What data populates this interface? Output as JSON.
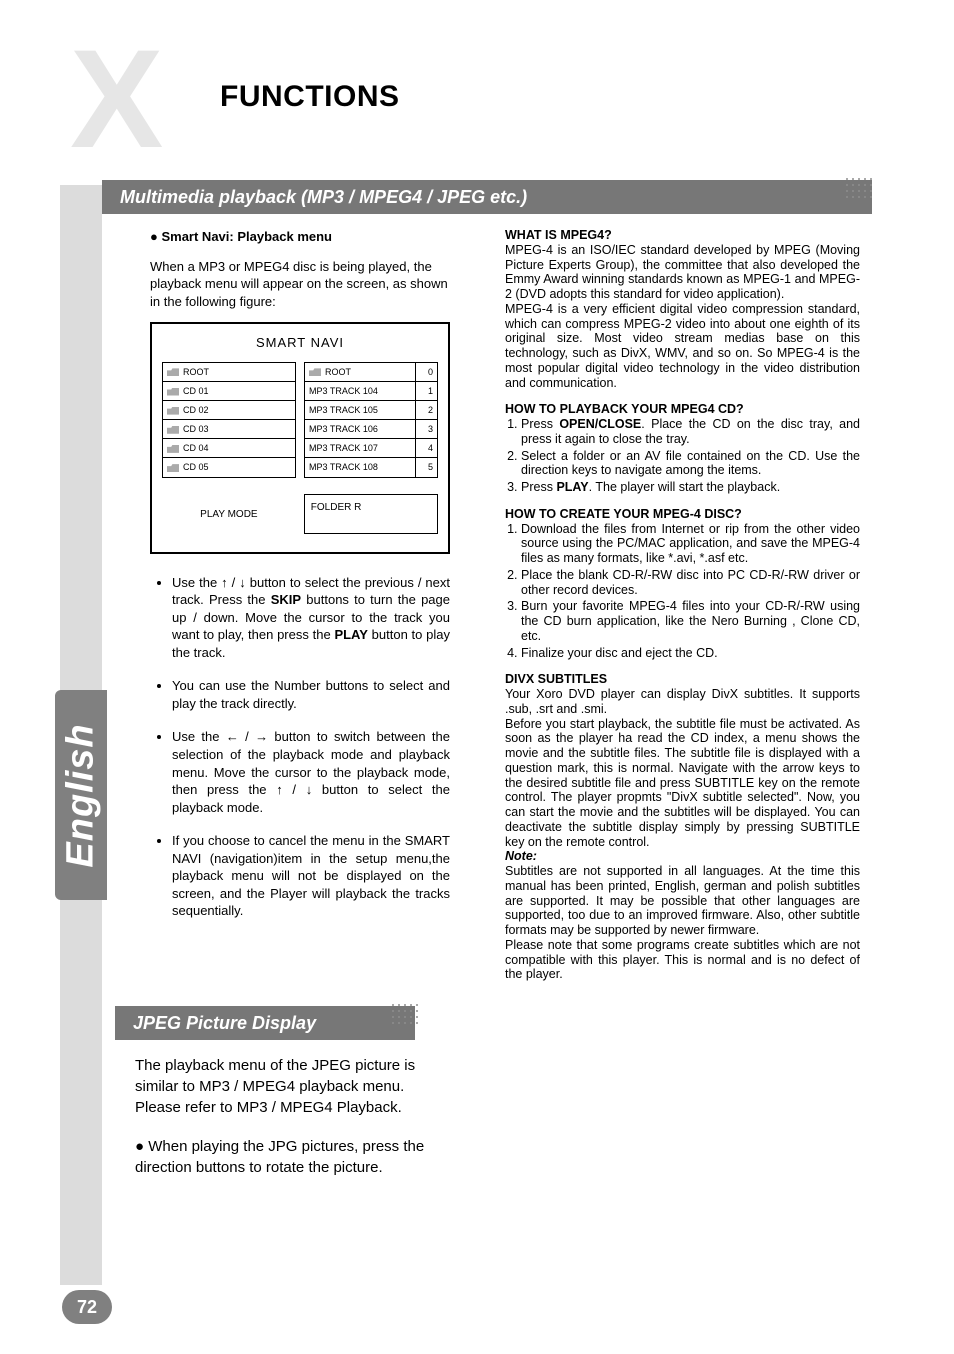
{
  "header": {
    "big_x": "X",
    "title": "FUNCTIONS"
  },
  "side_tab": "English",
  "banner1": "Multimedia playback (MP3 / MPEG4 / JPEG etc.)",
  "banner2": "JPEG Picture Display",
  "page_number": "72",
  "left": {
    "smart_head_bullet": "●",
    "smart_head": " Smart Navi: Playback menu",
    "intro": "When a MP3 or MPEG4 disc is being played, the playback menu will appear on the screen, as shown in the following figure:",
    "navi": {
      "title": "SMART NAVI",
      "left_rows": [
        "ROOT",
        "CD 01",
        "CD 02",
        "CD 03",
        "CD 04",
        "CD 05"
      ],
      "right_rows": [
        {
          "label": "ROOT",
          "n": "0"
        },
        {
          "label": "MP3  TRACK 104",
          "n": "1"
        },
        {
          "label": "MP3  TRACK 105",
          "n": "2"
        },
        {
          "label": "MP3  TRACK 106",
          "n": "3"
        },
        {
          "label": "MP3  TRACK 107",
          "n": "4"
        },
        {
          "label": "MP3  TRACK 108",
          "n": "5"
        }
      ],
      "play_mode": "PLAY MODE",
      "folder_r": "FOLDER R"
    },
    "bullets": {
      "b1a": "Use the ",
      "b1arrows": "↑ / ↓",
      "b1b": " button to select the previous / next track. Press the ",
      "b1skip": "SKIP",
      "b1c": " buttons to turn the page up / down. Move the cursor to the track you want to play, then press the ",
      "b1play": "PLAY",
      "b1d": " button to play the track.",
      "b2": "You can use the Number buttons to select and play the track directly.",
      "b3a": "Use the ",
      "b3arrows": "← / →",
      "b3b": " button to switch between the selection of the playback mode and playback menu. Move the cursor to the playback mode, then press the ",
      "b3arrows2": "↑ / ↓",
      "b3c": " button to select the playback mode.",
      "b4": "If you choose to cancel the menu in the SMART NAVI (navigation)item in the setup menu,the playback menu will not be displayed on the screen, and the Player will playback the tracks sequentially."
    }
  },
  "jpeg": {
    "p1": "The playback menu of the JPEG picture is similar to MP3 / MPEG4 playback menu. Please refer to MP3 / MPEG4 Playback.",
    "p2": "●   When playing the JPG pictures, press the direction buttons to rotate the picture."
  },
  "right": {
    "h1": "WHAT IS MPEG4?",
    "p1": "MPEG-4 is an ISO/IEC standard developed by MPEG (Moving Picture Experts Group), the committee that also developed the Emmy Award winning standards known as MPEG-1 and MPEG-2 (DVD adopts this standard for video application).",
    "p2": "MPEG-4 is a very efficient digital video compression standard, which can compress MPEG-2 video into about one eighth of its original size. Most video stream medias base on this technology, such as DivX, WMV, and so on. So MPEG-4 is the most popular digital video technology in the video distribution and communication.",
    "h2": "HOW TO PLAYBACK YOUR MPEG4 CD?",
    "ol1_1a": "Press ",
    "ol1_1key": "OPEN/CLOSE",
    "ol1_1b": ". Place the CD on the disc tray, and press it again to close the tray.",
    "ol1_2": "Select a folder or an AV file contained on the CD. Use the direction keys to navigate among the items.",
    "ol1_3a": "Press ",
    "ol1_3key": "PLAY",
    "ol1_3b": ". The player will start the playback.",
    "h3": "HOW TO CREATE YOUR MPEG-4 DISC?",
    "ol2_1": "Download the files from Internet or rip from the other video source using the PC/MAC application, and save the MPEG-4 files as many formats, like *.avi, *.asf etc.",
    "ol2_2": "Place the blank CD-R/-RW disc into PC CD-R/-RW driver or other record devices.",
    "ol2_3": "Burn your favorite MPEG-4 files into your CD-R/-RW using the CD burn application, like the Nero Burning , Clone CD, etc.",
    "ol2_4": "Finalize your disc and eject the CD.",
    "h4": "DIVX SUBTITLES",
    "p3": "Your Xoro DVD player can display DivX subtitles. It supports .sub, .srt and .smi.",
    "p4": "Before you start playback, the subtitle file must be activated. As soon as the player ha read the CD index, a menu shows the movie and the subtitle files. The subtitle file is displayed with a question mark, this is normal. Navigate with the arrow keys to the desired subtitle file and press SUBTITLE key on the remote control. The player propmts \"DivX subtitle selected\". Now, you can start the movie and the subtitles will be displayed. You can deactivate the subtitle display simply by pressing SUBTITLE key on the remote control.",
    "note": "Note:",
    "p5": "Subtitles are not supported in all languages. At the time this manual has been printed, English, german and polish subtitles are supported. It may be possible that other languages are supported, too due to an improved firmware. Also, other subtitle formats may be supported by newer firmware.",
    "p6": "Please note that some programs create subtitles which are not compatible with this player. This is normal and is no defect of the player."
  }
}
